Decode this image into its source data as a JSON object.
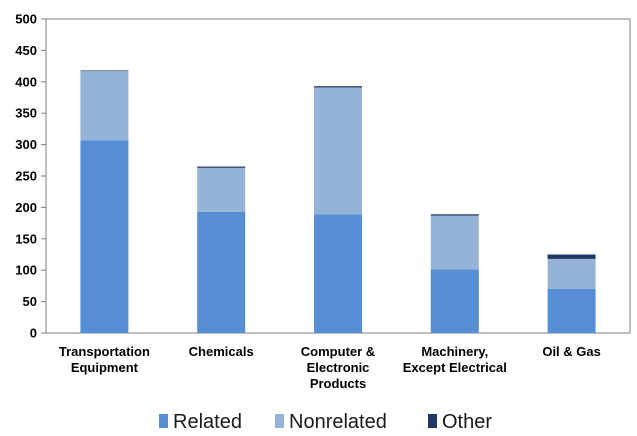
{
  "chart_data": {
    "type": "bar",
    "stacked": true,
    "categories": [
      [
        "Transportation",
        "Equipment"
      ],
      [
        "Chemicals"
      ],
      [
        "Computer &",
        "Electronic",
        "Products"
      ],
      [
        "Machinery,",
        "Except Electrical"
      ],
      [
        "Oil & Gas"
      ]
    ],
    "series": [
      {
        "name": "Related",
        "color": "#558ed5",
        "values": [
          307,
          193,
          189,
          101,
          70
        ]
      },
      {
        "name": "Nonrelated",
        "color": "#95b3d7",
        "values": [
          110,
          70,
          202,
          86,
          48
        ]
      },
      {
        "name": "Other",
        "color": "#1f3864",
        "values": [
          1,
          2,
          2,
          2,
          7
        ]
      }
    ],
    "ylim": [
      0,
      500
    ],
    "yticks": [
      "0",
      "50",
      "100",
      "150",
      "200",
      "250",
      "300",
      "350",
      "400",
      "450",
      "500"
    ],
    "grid": false,
    "legend_position": "bottom"
  }
}
